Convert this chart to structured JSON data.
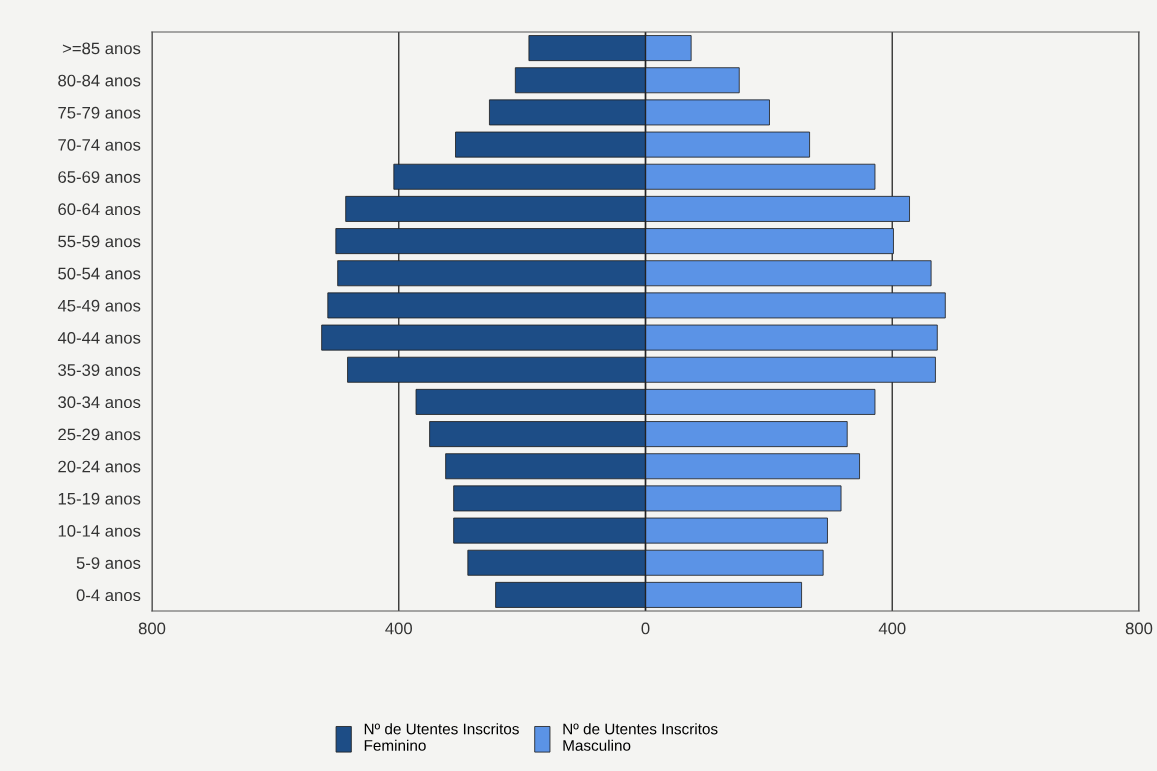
{
  "chart_data": {
    "type": "bar",
    "orientation": "horizontal",
    "stacked": true,
    "categories": [
      ">=85 anos",
      "80-84 anos",
      "75-79 anos",
      "70-74 anos",
      "65-69 anos",
      "60-64 anos",
      "55-59 anos",
      "50-54 anos",
      "45-49 anos",
      "40-44 anos",
      "35-39 anos",
      "30-34 anos",
      "25-29 anos",
      "20-24 anos",
      "15-19 anos",
      "10-14 anos",
      "5-9 anos",
      "0-4 anos"
    ],
    "series": [
      {
        "name": "Nº de Utentes Inscritos\nFeminino",
        "color": "#1d4d86",
        "values": [
          -189,
          -211,
          -253,
          -308,
          -408,
          -486,
          -502,
          -499,
          -515,
          -525,
          -483,
          -372,
          -350,
          -324,
          -311,
          -311,
          -288,
          -243
        ]
      },
      {
        "name": "Nº de Utentes Inscritos\nMasculino",
        "color": "#5b93e6",
        "values": [
          74,
          152,
          201,
          266,
          372,
          428,
          402,
          463,
          486,
          473,
          470,
          372,
          327,
          347,
          317,
          295,
          288,
          253
        ]
      }
    ],
    "xlim": [
      -800,
      800
    ],
    "xticks": [
      {
        "value": -800,
        "label": "800"
      },
      {
        "value": -400,
        "label": "400"
      },
      0,
      400,
      800
    ],
    "grid": "x",
    "legend": "bottom"
  }
}
